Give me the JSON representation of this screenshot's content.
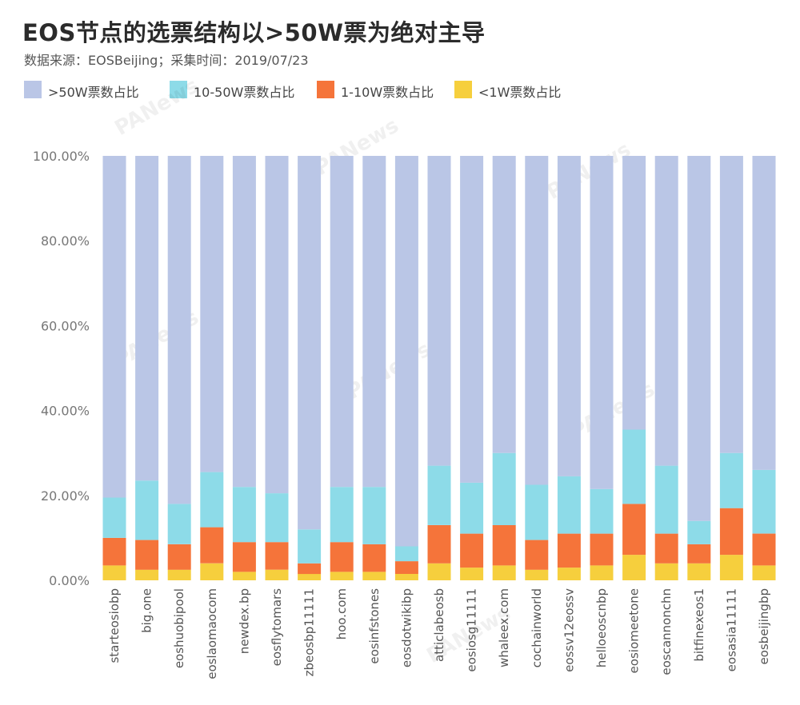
{
  "chart_data": {
    "type": "bar",
    "stacked": true,
    "title": "EOS节点的选票结构以>50W票为绝对主导",
    "subtitle": "数据来源：EOSBeijing；采集时间：2019/07/23",
    "ylim": [
      0,
      100
    ],
    "yticks": [
      "0.00%",
      "20.00%",
      "40.00%",
      "60.00%",
      "80.00%",
      "100.00%"
    ],
    "legend_position": "top-left",
    "categories": [
      "starteosiobp",
      "big.one",
      "eoshuobipool",
      "eoslaomaocom",
      "newdex.bp",
      "eosflytomars",
      "zbeosbp11111",
      "hoo.com",
      "eosinfstones",
      "eosdotwikibp",
      "atticlabeosb",
      "eosiosg11111",
      "whaleex.com",
      "cochainworld",
      "eossv12eossv",
      "helloeoscnbp",
      "eosiomeetone",
      "eoscannonchn",
      "bitfinexeos1",
      "eosasia11111",
      "eosbeijingbp"
    ],
    "series": [
      {
        "name": "<1W票数占比",
        "color": "#f6cf3d",
        "values": [
          3.5,
          2.5,
          2.5,
          4.0,
          2.0,
          2.5,
          1.5,
          2.0,
          2.0,
          1.5,
          4.0,
          3.0,
          3.5,
          2.5,
          3.0,
          3.5,
          6.0,
          4.0,
          4.0,
          6.0,
          3.5
        ]
      },
      {
        "name": "1-10W票数占比",
        "color": "#f5743a",
        "values": [
          6.5,
          7.0,
          6.0,
          8.5,
          7.0,
          6.5,
          2.5,
          7.0,
          6.5,
          3.0,
          9.0,
          8.0,
          9.5,
          7.0,
          8.0,
          7.5,
          12.0,
          7.0,
          4.5,
          11.0,
          7.5
        ]
      },
      {
        "name": "10-50W票数占比",
        "color": "#8ddbe8",
        "values": [
          9.5,
          14.0,
          9.5,
          13.0,
          13.0,
          11.5,
          8.0,
          13.0,
          13.5,
          3.5,
          14.0,
          12.0,
          17.0,
          13.0,
          13.5,
          10.5,
          17.5,
          16.0,
          5.5,
          13.0,
          15.0
        ]
      },
      {
        "name": ">50W票数占比",
        "color": "#bac6e6",
        "values": [
          80.5,
          76.5,
          82.0,
          74.5,
          78.0,
          79.5,
          88.0,
          78.0,
          78.0,
          92.0,
          73.0,
          77.0,
          70.0,
          77.5,
          75.5,
          78.5,
          64.5,
          73.0,
          86.0,
          70.0,
          74.0
        ]
      }
    ],
    "legend_order": [
      ">50W票数占比",
      "10-50W票数占比",
      "1-10W票数占比",
      "<1W票数占比"
    ],
    "watermark": "PANews"
  }
}
